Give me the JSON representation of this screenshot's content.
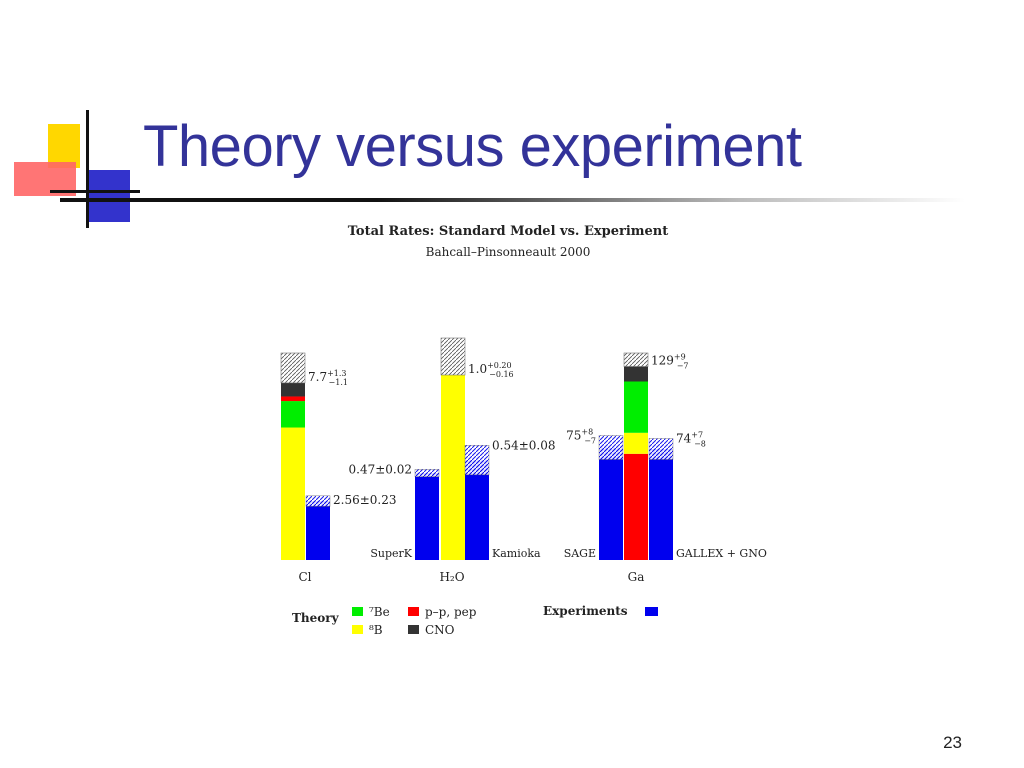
{
  "slide": {
    "title": "Theory versus experiment",
    "page_number": "23"
  },
  "chart_data": {
    "type": "bar",
    "title": "Total Rates: Standard Model vs. Experiment",
    "subtitle": "Bahcall–Pinsonneault 2000",
    "groups": [
      {
        "name": "Cl",
        "theory": {
          "label": "7.7",
          "sup": "+1.3",
          "sub": "−1.1",
          "segments": {
            "8B": 5.76,
            "7Be": 1.15,
            "pp_pep": 0.2,
            "CNO": 0.59
          },
          "error_hi": 1.3
        },
        "experiments": [
          {
            "name": "",
            "value": 2.56,
            "label": "2.56±0.23",
            "error": 0.23
          }
        ]
      },
      {
        "name": "H₂O",
        "theory": {
          "label": "1.0",
          "sup": "+0.20",
          "sub": "−0.16",
          "segments": {
            "8B": 1.0
          },
          "error_hi": 0.2
        },
        "experiments": [
          {
            "name": "SuperK",
            "value": 0.47,
            "label": "0.47±0.02",
            "error": 0.02
          },
          {
            "name": "Kamioka",
            "value": 0.54,
            "label": "0.54±0.08",
            "error": 0.08
          }
        ]
      },
      {
        "name": "Ga",
        "theory": {
          "label": "129",
          "sup": "+9",
          "sub": "−7",
          "segments": {
            "pp_pep": 70.8,
            "8B": 14,
            "7Be": 34.2,
            "CNO": 10
          },
          "error_hi": 9
        },
        "experiments": [
          {
            "name": "SAGE",
            "value": 75,
            "label": "75",
            "sup": "+8",
            "sub": "−7",
            "error": 8
          },
          {
            "name": "GALLEX + GNO",
            "value": 74,
            "label": "74",
            "sup": "+7",
            "sub": "−8",
            "error": 7
          }
        ]
      }
    ],
    "legend": {
      "theory_label": "Theory",
      "experiments_label": "Experiments",
      "items": [
        {
          "key": "7Be",
          "label": "⁷Be",
          "color": "#00ee00"
        },
        {
          "key": "pp_pep",
          "label": "p–p, pep",
          "color": "#ff0000"
        },
        {
          "key": "8B",
          "label": "⁸B",
          "color": "#ffff00"
        },
        {
          "key": "CNO",
          "label": "CNO",
          "color": "#333333"
        }
      ],
      "experiments_color": "#0000ee"
    }
  }
}
